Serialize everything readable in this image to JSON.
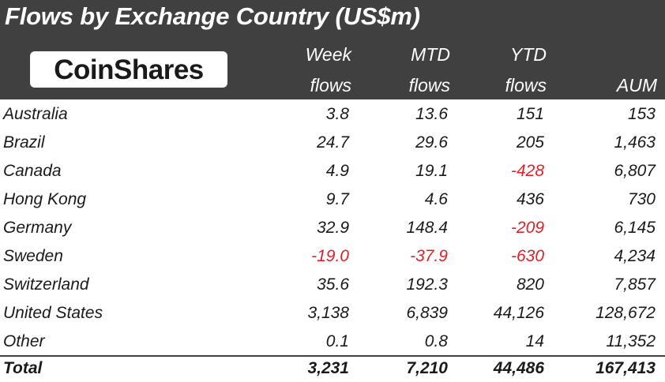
{
  "title": "Flows by Exchange Country (US$m)",
  "brand": {
    "logo_text": "CoinShares"
  },
  "colors": {
    "header_bg": "#404040",
    "negative": "#e31f26",
    "text": "#1a1a1a"
  },
  "chart_data": {
    "type": "table",
    "title": "Flows by Exchange Country (US$m)",
    "columns": [
      {
        "line1": "Week",
        "line2": "flows"
      },
      {
        "line1": "MTD",
        "line2": "flows"
      },
      {
        "line1": "YTD",
        "line2": "flows"
      },
      {
        "line1": "",
        "line2": "AUM"
      }
    ],
    "rows": [
      {
        "label": "Australia",
        "values": [
          "3.8",
          "13.6",
          "151",
          "153"
        ]
      },
      {
        "label": "Brazil",
        "values": [
          "24.7",
          "29.6",
          "205",
          "1,463"
        ]
      },
      {
        "label": "Canada",
        "values": [
          "4.9",
          "19.1",
          "-428",
          "6,807"
        ]
      },
      {
        "label": "Hong Kong",
        "values": [
          "9.7",
          "4.6",
          "436",
          "730"
        ]
      },
      {
        "label": "Germany",
        "values": [
          "32.9",
          "148.4",
          "-209",
          "6,145"
        ]
      },
      {
        "label": "Sweden",
        "values": [
          "-19.0",
          "-37.9",
          "-630",
          "4,234"
        ]
      },
      {
        "label": "Switzerland",
        "values": [
          "35.6",
          "192.3",
          "820",
          "7,857"
        ]
      },
      {
        "label": "United States",
        "values": [
          "3,138",
          "6,839",
          "44,126",
          "128,672"
        ]
      },
      {
        "label": "Other",
        "values": [
          "0.1",
          "0.8",
          "14",
          "11,352"
        ]
      }
    ],
    "total": {
      "label": "Total",
      "values": [
        "3,231",
        "7,210",
        "44,486",
        "167,413"
      ]
    }
  }
}
